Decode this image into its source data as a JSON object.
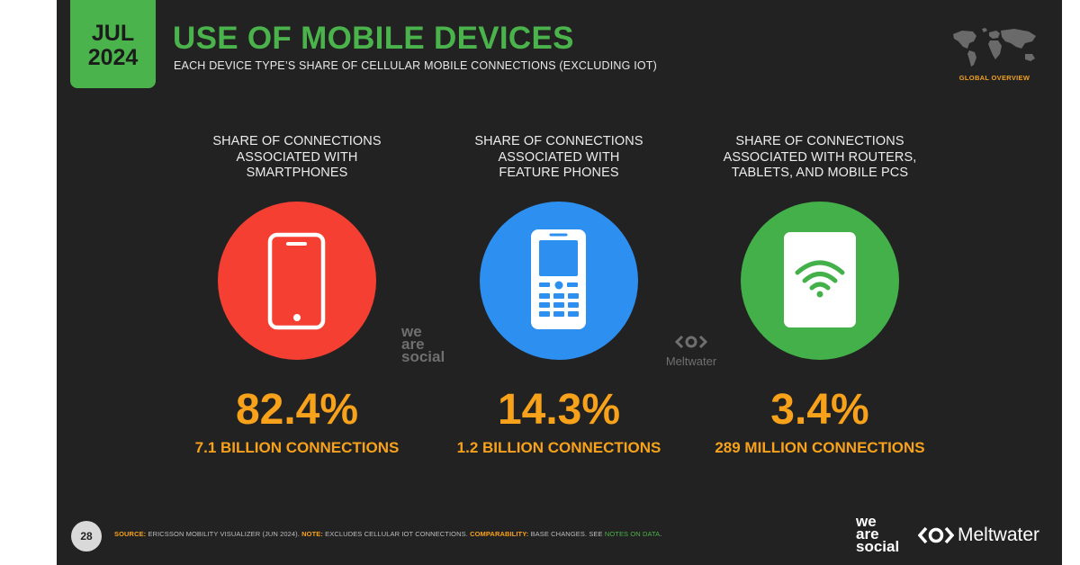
{
  "badge": {
    "month": "JUL",
    "year": "2024"
  },
  "header": {
    "title": "USE OF MOBILE DEVICES",
    "subtitle": "EACH DEVICE TYPE’S SHARE OF CELLULAR MOBILE CONNECTIONS (EXCLUDING IOT)",
    "section": "GLOBAL OVERVIEW"
  },
  "columns": [
    {
      "heading": [
        "SHARE OF CONNECTIONS",
        "ASSOCIATED WITH",
        "SMARTPHONES"
      ],
      "icon": "smartphone-icon",
      "color": "#f43f32",
      "percent": "82.4%",
      "connections": "7.1 BILLION CONNECTIONS"
    },
    {
      "heading": [
        "SHARE OF CONNECTIONS",
        "ASSOCIATED WITH",
        "FEATURE PHONES"
      ],
      "icon": "feature-phone-icon",
      "color": "#2d8fef",
      "percent": "14.3%",
      "connections": "1.2 BILLION CONNECTIONS"
    },
    {
      "heading": [
        "SHARE OF CONNECTIONS",
        "ASSOCIATED WITH ROUTERS,",
        "TABLETS, AND MOBILE PCS"
      ],
      "icon": "wifi-tablet-icon",
      "color": "#43b049",
      "percent": "3.4%",
      "connections": "289 MILLION CONNECTIONS"
    }
  ],
  "watermarks": {
    "wearesocial": [
      "we",
      "are",
      "social"
    ],
    "meltwater": "Meltwater"
  },
  "footer": {
    "page": "28",
    "source_key": "SOURCE:",
    "source_text": " ERICSSON MOBILITY VISUALIZER (JUN 2024). ",
    "note_key": "NOTE:",
    "note_text": " EXCLUDES CELLULAR IOT CONNECTIONS. ",
    "comp_key": "COMPARABILITY:",
    "comp_text": " BASE CHANGES. SEE ",
    "link_text": "NOTES ON DATA",
    "end": "."
  },
  "logos": {
    "wearesocial": [
      "we",
      "are",
      "social"
    ],
    "meltwater": "Meltwater"
  }
}
